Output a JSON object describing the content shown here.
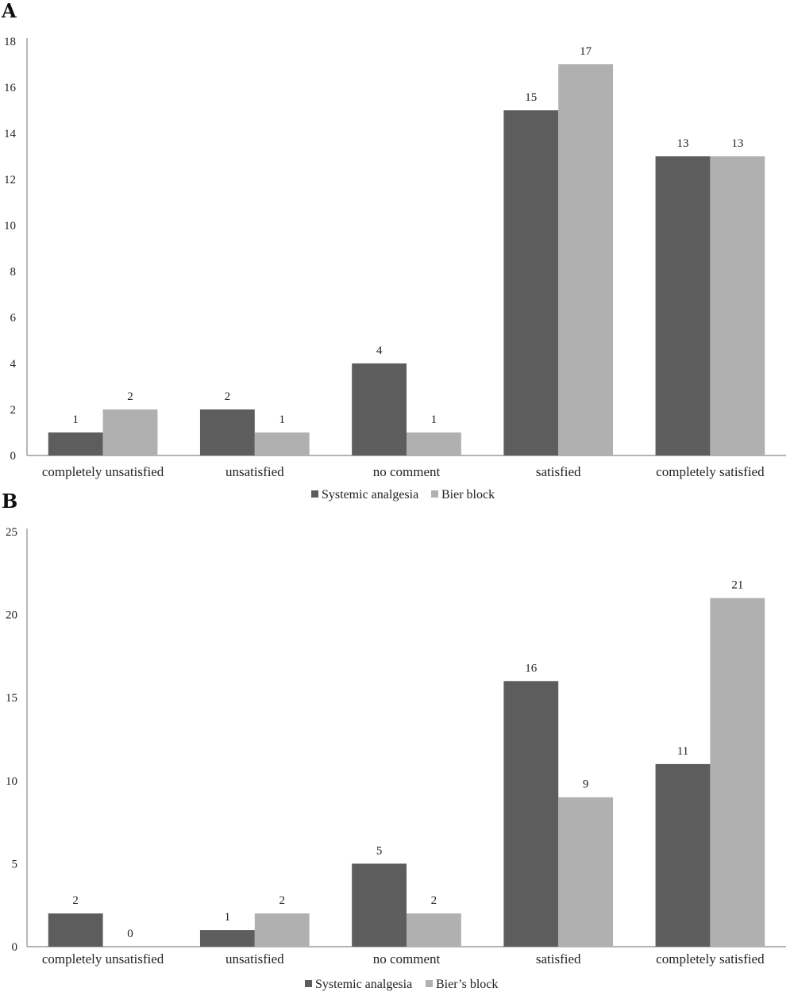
{
  "panels": [
    {
      "letter": "A"
    },
    {
      "letter": "B"
    }
  ],
  "chart_data": [
    {
      "type": "bar",
      "title": "",
      "xlabel": "",
      "ylabel": "",
      "ylim": [
        0,
        18
      ],
      "yticks": [
        0,
        2,
        4,
        6,
        8,
        10,
        12,
        14,
        16,
        18
      ],
      "grid": false,
      "legend_position": "bottom",
      "categories": [
        "completely unsatisfied",
        "unsatisfied",
        "no comment",
        "satisfied",
        "completely satisfied"
      ],
      "series": [
        {
          "name": "Systemic analgesia",
          "color": "#5d5d5d",
          "values": [
            1,
            2,
            4,
            15,
            13
          ]
        },
        {
          "name": "Bier block",
          "color": "#b0b0b0",
          "values": [
            2,
            1,
            1,
            17,
            13
          ]
        }
      ]
    },
    {
      "type": "bar",
      "title": "",
      "xlabel": "",
      "ylabel": "",
      "ylim": [
        0,
        25
      ],
      "yticks": [
        0,
        5,
        10,
        15,
        20,
        25
      ],
      "grid": false,
      "legend_position": "bottom",
      "categories": [
        "completely unsatisfied",
        "unsatisfied",
        "no comment",
        "satisfied",
        "completely satisfied"
      ],
      "series": [
        {
          "name": "Systemic analgesia",
          "color": "#5d5d5d",
          "values": [
            2,
            1,
            5,
            16,
            11
          ]
        },
        {
          "name": "Bier’s block",
          "color": "#b0b0b0",
          "values": [
            0,
            2,
            2,
            9,
            21
          ]
        }
      ]
    }
  ]
}
